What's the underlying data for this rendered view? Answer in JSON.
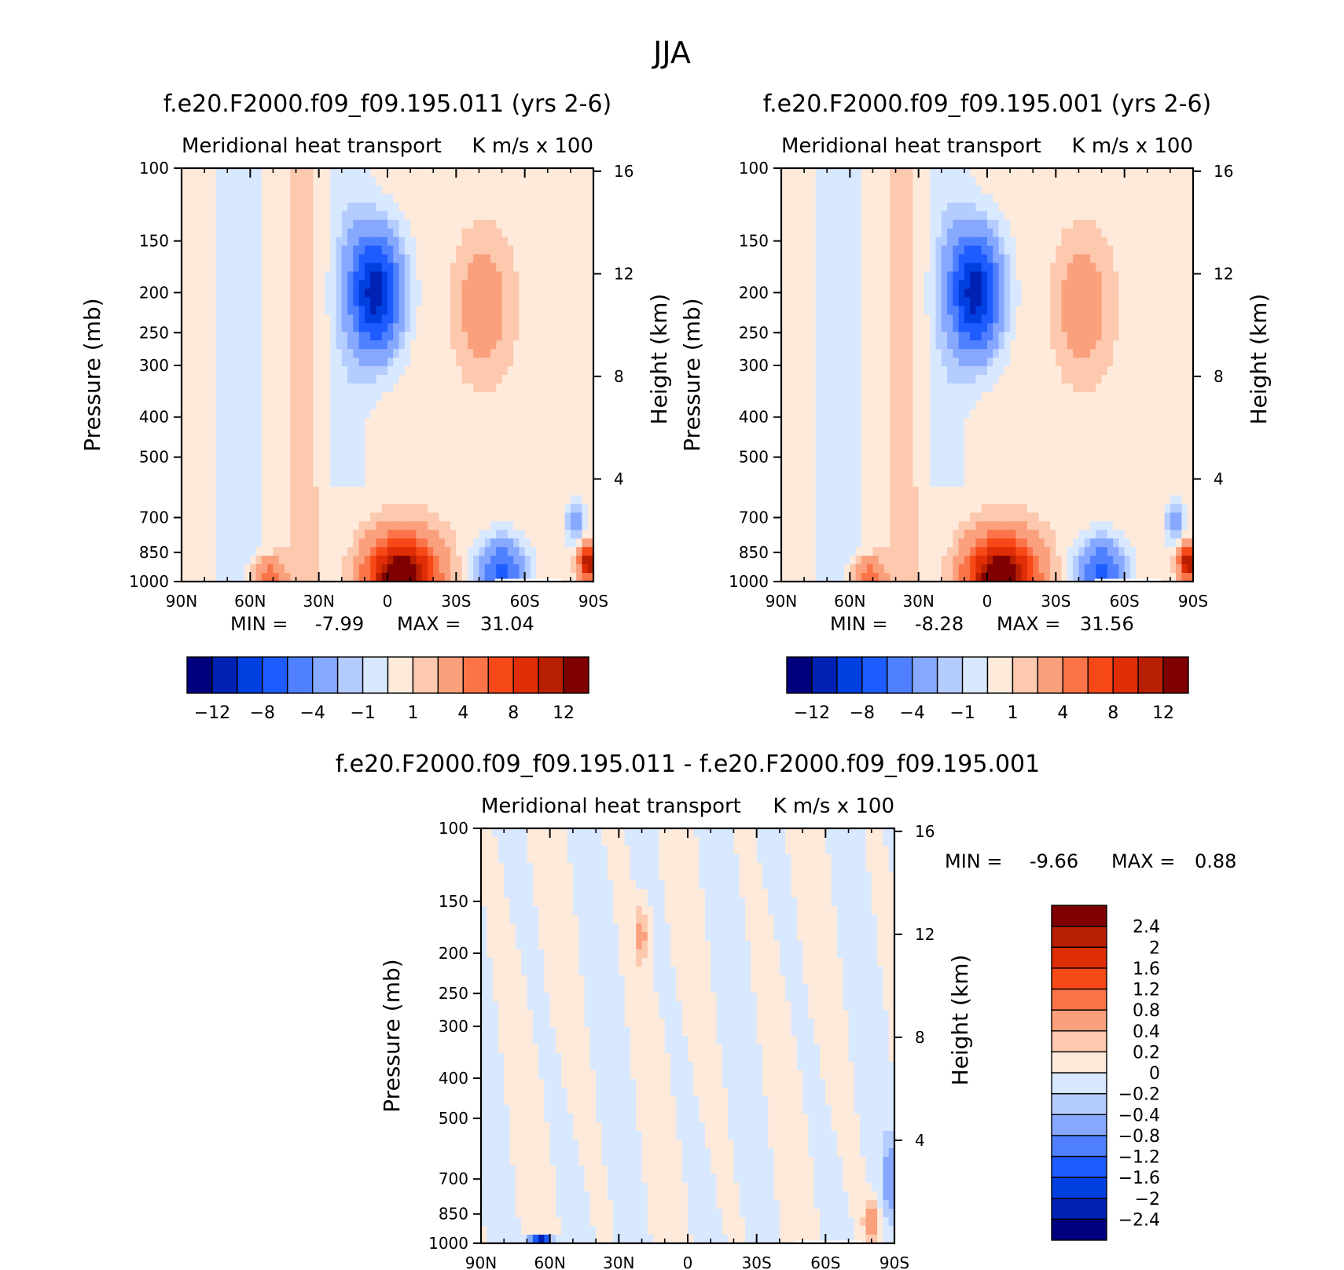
{
  "page_title": "JJA",
  "chart_data": [
    {
      "type": "heatmap",
      "title": "f.e20.F2000.f09_f09.195.011 (yrs 2-6)",
      "left_subtitle": "Meridional heat transport",
      "right_subtitle": "K m/s x 100",
      "ylabel": "Pressure (mb)",
      "ylabel_right": "Height (km)",
      "x_ticks": [
        "90N",
        "60N",
        "30N",
        "0",
        "30S",
        "60S",
        "90S"
      ],
      "y_ticks": [
        "100",
        "150",
        "200",
        "250",
        "300",
        "400",
        "500",
        "700",
        "850",
        "1000"
      ],
      "y_right_ticks": [
        "16",
        "12",
        "8",
        "4"
      ],
      "xlim": [
        90,
        -90
      ],
      "ylim": [
        1000,
        100
      ],
      "yscale": "log",
      "min_label": "MIN =",
      "min_value": "-7.99",
      "max_label": "MAX =",
      "max_value": "31.04",
      "colorbar": {
        "orientation": "horizontal",
        "levels": [
          -12,
          -10,
          -8,
          -6,
          -4,
          -2,
          -1,
          0,
          1,
          2,
          4,
          6,
          8,
          10,
          12
        ],
        "tick_labels": [
          "-12",
          "-8",
          "-4",
          "-1",
          "1",
          "4",
          "8",
          "12"
        ]
      },
      "features": [
        {
          "lat": 5,
          "p": 200,
          "value": -10,
          "desc": "upper-level negative core near equator"
        },
        {
          "lat": -40,
          "p": 220,
          "value": 2,
          "desc": "upper-level positive patch 30-60S"
        },
        {
          "lat": -5,
          "p": 960,
          "value": 12,
          "desc": "low-level positive maximum"
        },
        {
          "lat": -50,
          "p": 930,
          "value": -6,
          "desc": "low-level negative 40-60S"
        },
        {
          "lat": 52,
          "p": 960,
          "value": 4,
          "desc": "low-level positive 45-60N"
        },
        {
          "lat": -85,
          "p": 880,
          "value": 10,
          "desc": "high positive near 90S"
        }
      ]
    },
    {
      "type": "heatmap",
      "title": "f.e20.F2000.f09_f09.195.001 (yrs 2-6)",
      "left_subtitle": "Meridional heat transport",
      "right_subtitle": "K m/s x 100",
      "ylabel": "Pressure (mb)",
      "ylabel_right": "Height (km)",
      "x_ticks": [
        "90N",
        "60N",
        "30N",
        "0",
        "30S",
        "60S",
        "90S"
      ],
      "y_ticks": [
        "100",
        "150",
        "200",
        "250",
        "300",
        "400",
        "500",
        "700",
        "850",
        "1000"
      ],
      "y_right_ticks": [
        "16",
        "12",
        "8",
        "4"
      ],
      "xlim": [
        90,
        -90
      ],
      "ylim": [
        1000,
        100
      ],
      "yscale": "log",
      "min_label": "MIN =",
      "min_value": "-8.28",
      "max_label": "MAX =",
      "max_value": "31.56",
      "colorbar": {
        "orientation": "horizontal",
        "levels": [
          -12,
          -10,
          -8,
          -6,
          -4,
          -2,
          -1,
          0,
          1,
          2,
          4,
          6,
          8,
          10,
          12
        ],
        "tick_labels": [
          "-12",
          "-8",
          "-4",
          "-1",
          "1",
          "4",
          "8",
          "12"
        ]
      },
      "features": [
        {
          "lat": 5,
          "p": 200,
          "value": -10,
          "desc": "upper-level negative core near equator"
        },
        {
          "lat": -40,
          "p": 220,
          "value": 2,
          "desc": "upper-level positive patch 30-60S"
        },
        {
          "lat": -5,
          "p": 960,
          "value": 12,
          "desc": "low-level positive maximum"
        },
        {
          "lat": -50,
          "p": 930,
          "value": -6,
          "desc": "low-level negative 40-60S"
        },
        {
          "lat": 52,
          "p": 960,
          "value": 4,
          "desc": "low-level positive 45-60N"
        },
        {
          "lat": -85,
          "p": 880,
          "value": 10,
          "desc": "high positive near 90S"
        }
      ]
    },
    {
      "type": "heatmap",
      "title": "f.e20.F2000.f09_f09.195.011 - f.e20.F2000.f09_f09.195.001",
      "left_subtitle": "Meridional heat transport",
      "right_subtitle": "K m/s x 100",
      "ylabel": "Pressure (mb)",
      "ylabel_right": "Height (km)",
      "x_ticks": [
        "90N",
        "60N",
        "30N",
        "0",
        "30S",
        "60S",
        "90S"
      ],
      "y_ticks": [
        "100",
        "150",
        "200",
        "250",
        "300",
        "400",
        "500",
        "700",
        "850",
        "1000"
      ],
      "y_right_ticks": [
        "16",
        "12",
        "8",
        "4"
      ],
      "xlim": [
        90,
        -90
      ],
      "ylim": [
        1000,
        100
      ],
      "yscale": "log",
      "min_label": "MIN =",
      "min_value": "-9.66",
      "max_label": "MAX =",
      "max_value": "0.88",
      "colorbar": {
        "orientation": "vertical",
        "levels": [
          -2.4,
          -2,
          -1.6,
          -1.2,
          -0.8,
          -0.4,
          -0.2,
          0,
          0.2,
          0.4,
          0.8,
          1.2,
          1.6,
          2,
          2.4
        ],
        "tick_labels": [
          "-2.4",
          "-2",
          "-1.6",
          "-1.2",
          "-0.8",
          "-0.4",
          "-0.2",
          "0",
          "0.2",
          "0.4",
          "0.8",
          "1.2",
          "1.6",
          "2",
          "2.4"
        ]
      },
      "features": [
        {
          "lat": 64,
          "p": 990,
          "value": -2.4,
          "desc": "negative minimum near 60N surface"
        },
        {
          "lat": -80,
          "p": 880,
          "value": 0.6,
          "desc": "positive streaks near 90S"
        }
      ]
    }
  ],
  "colors": {
    "palette": [
      "#00007f",
      "#0022b4",
      "#0040e0",
      "#1e5cff",
      "#4f80ff",
      "#86a8ff",
      "#b5ccff",
      "#d8e8ff",
      "#feeadb",
      "#fcc8ae",
      "#fba07c",
      "#fb7449",
      "#f74818",
      "#df2d05",
      "#b81f00",
      "#7f0000"
    ]
  }
}
